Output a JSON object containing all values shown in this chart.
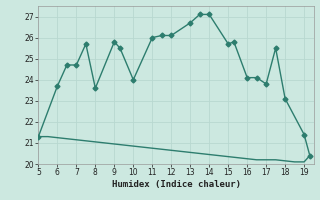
{
  "x_main": [
    5,
    6,
    6.5,
    7,
    7.5,
    8,
    9,
    9.3,
    10,
    11,
    11.5,
    12,
    13,
    13.5,
    14,
    15,
    15.3,
    16,
    16.5,
    17,
    17.5,
    18,
    19,
    19.3
  ],
  "y_main": [
    21.3,
    23.7,
    24.7,
    24.7,
    25.7,
    23.6,
    25.8,
    25.5,
    24.0,
    26.0,
    26.1,
    26.1,
    26.7,
    27.1,
    27.1,
    25.7,
    25.8,
    24.1,
    24.1,
    23.8,
    25.5,
    23.1,
    21.4,
    20.4
  ],
  "x_lower": [
    5,
    5.5,
    6,
    6.5,
    7,
    7.5,
    8,
    8.5,
    9,
    9.5,
    10,
    10.5,
    11,
    11.5,
    12,
    12.5,
    13,
    13.5,
    14,
    14.5,
    15,
    15.5,
    16,
    16.5,
    17,
    17.5,
    18,
    18.5,
    19,
    19.3
  ],
  "y_lower": [
    21.3,
    21.3,
    21.25,
    21.2,
    21.15,
    21.1,
    21.05,
    21.0,
    20.95,
    20.9,
    20.85,
    20.8,
    20.75,
    20.7,
    20.65,
    20.6,
    20.55,
    20.5,
    20.45,
    20.4,
    20.35,
    20.3,
    20.25,
    20.2,
    20.2,
    20.2,
    20.15,
    20.1,
    20.1,
    20.4
  ],
  "line_color": "#2d7d6e",
  "bg_color": "#cce8e0",
  "grid_color": "#b8d8d0",
  "xlabel": "Humidex (Indice chaleur)",
  "xlim": [
    5,
    19.5
  ],
  "ylim": [
    20,
    27.5
  ],
  "xticks": [
    5,
    6,
    7,
    8,
    9,
    10,
    11,
    12,
    13,
    14,
    15,
    16,
    17,
    18,
    19
  ],
  "yticks": [
    20,
    21,
    22,
    23,
    24,
    25,
    26,
    27
  ],
  "markersize": 2.5,
  "linewidth": 1.0
}
